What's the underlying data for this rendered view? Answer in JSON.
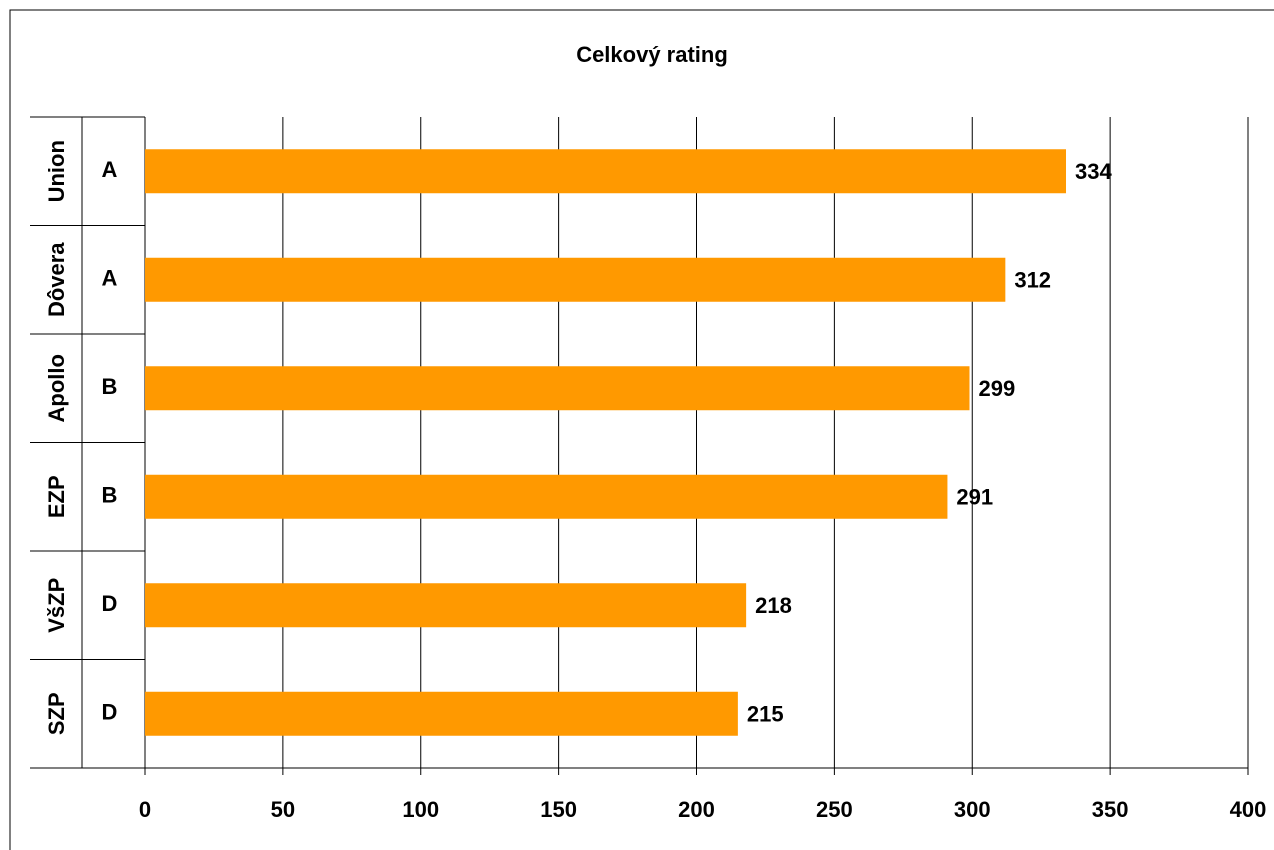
{
  "chart_data": {
    "type": "bar",
    "orientation": "horizontal",
    "title": "Celkový rating",
    "categories": [
      "Union",
      "Dôvera",
      "Apollo",
      "EZP",
      "VšZP",
      "SZP"
    ],
    "subcategories": [
      "A",
      "A",
      "B",
      "B",
      "D",
      "D"
    ],
    "values": [
      334,
      312,
      299,
      291,
      218,
      215
    ],
    "color": "#ff9900",
    "xlim": [
      0,
      400
    ],
    "xticks": [
      0,
      50,
      100,
      150,
      200,
      250,
      300,
      350,
      400
    ],
    "grid": true
  }
}
